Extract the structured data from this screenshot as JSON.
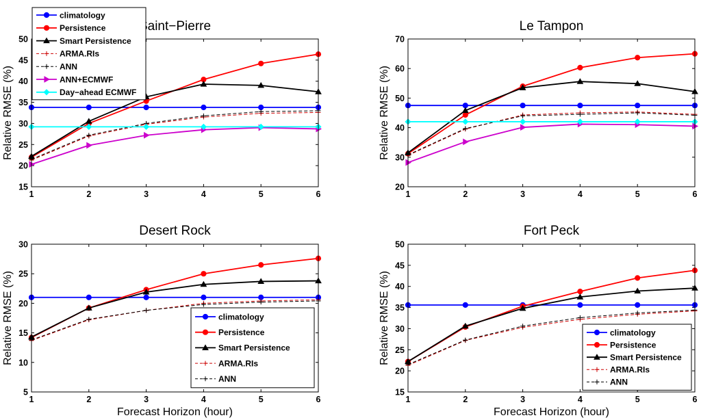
{
  "chart_data": [
    {
      "type": "line",
      "title": "Saint−Pierre",
      "ylabel": "Relative RMSE (%)",
      "xlabel": "",
      "x": [
        1,
        2,
        3,
        4,
        5,
        6
      ],
      "xlim": [
        1,
        6
      ],
      "ylim": [
        15,
        50
      ],
      "yticks": [
        15,
        20,
        25,
        30,
        35,
        40,
        45,
        50
      ],
      "grid": false,
      "legend": {
        "placement": "top-left",
        "entries": [
          "climatology",
          "Persistence",
          "Smart Persistence",
          "ARMA.RIs",
          "ANN",
          "ANN+ECMWF",
          "Day−ahead ECMWF"
        ]
      },
      "series": [
        {
          "name": "climatology",
          "color": "#0000ff",
          "style": "solid",
          "marker": "circle",
          "values": [
            33.8,
            33.8,
            33.8,
            33.8,
            33.8,
            33.8
          ]
        },
        {
          "name": "Persistence",
          "color": "#ff0000",
          "style": "solid",
          "marker": "circle",
          "values": [
            22.0,
            30.0,
            35.3,
            40.4,
            44.2,
            46.4
          ]
        },
        {
          "name": "Smart Persistence",
          "color": "#000000",
          "style": "solid",
          "marker": "triangle",
          "values": [
            22.2,
            30.5,
            36.3,
            39.3,
            39.0,
            37.5
          ]
        },
        {
          "name": "ARMA.RIs",
          "color": "#cc0000",
          "style": "dashed",
          "marker": "plus",
          "values": [
            21.3,
            27.0,
            29.8,
            31.5,
            32.4,
            32.6
          ]
        },
        {
          "name": "ANN",
          "color": "#000000",
          "style": "dashed",
          "marker": "plus",
          "values": [
            21.5,
            27.2,
            30.0,
            31.8,
            32.8,
            33.0
          ]
        },
        {
          "name": "ANN+ECMWF",
          "color": "#cc00cc",
          "style": "solid",
          "marker": "triangle-right",
          "values": [
            20.3,
            24.8,
            27.2,
            28.5,
            29.0,
            28.7
          ]
        },
        {
          "name": "Day−ahead ECMWF",
          "color": "#00ffff",
          "style": "solid",
          "marker": "diamond",
          "values": [
            29.2,
            29.2,
            29.2,
            29.2,
            29.2,
            29.2
          ]
        }
      ]
    },
    {
      "type": "line",
      "title": "Le Tampon",
      "ylabel": "Relative RMSE (%)",
      "xlabel": "",
      "x": [
        1,
        2,
        3,
        4,
        5,
        6
      ],
      "xlim": [
        1,
        6
      ],
      "ylim": [
        20,
        70
      ],
      "yticks": [
        20,
        30,
        40,
        50,
        60,
        70
      ],
      "grid": false,
      "series": [
        {
          "name": "climatology",
          "color": "#0000ff",
          "style": "solid",
          "marker": "circle",
          "values": [
            47.5,
            47.5,
            47.5,
            47.5,
            47.5,
            47.5
          ]
        },
        {
          "name": "Persistence",
          "color": "#ff0000",
          "style": "solid",
          "marker": "circle",
          "values": [
            31.2,
            44.3,
            54.0,
            60.3,
            63.7,
            65.0
          ]
        },
        {
          "name": "Smart Persistence",
          "color": "#000000",
          "style": "solid",
          "marker": "triangle",
          "values": [
            31.5,
            45.8,
            53.5,
            55.6,
            54.9,
            52.2
          ]
        },
        {
          "name": "ARMA.RIs",
          "color": "#cc0000",
          "style": "dashed",
          "marker": "plus",
          "values": [
            30.6,
            39.5,
            44.3,
            45.0,
            45.3,
            44.5
          ]
        },
        {
          "name": "ANN",
          "color": "#000000",
          "style": "dashed",
          "marker": "plus",
          "values": [
            30.8,
            39.7,
            44.0,
            44.5,
            45.0,
            44.2
          ]
        },
        {
          "name": "ANN+ECMWF",
          "color": "#cc00cc",
          "style": "solid",
          "marker": "triangle-right",
          "values": [
            28.2,
            35.2,
            40.1,
            41.2,
            41.0,
            40.5
          ]
        },
        {
          "name": "Day−ahead ECMWF",
          "color": "#00ffff",
          "style": "solid",
          "marker": "diamond",
          "values": [
            42.0,
            42.0,
            42.0,
            42.0,
            42.0,
            42.0
          ]
        }
      ]
    },
    {
      "type": "line",
      "title": "Desert Rock",
      "ylabel": "Relative RMSE (%)",
      "xlabel": "Forecast Horizon (hour)",
      "x": [
        1,
        2,
        3,
        4,
        5,
        6
      ],
      "xlim": [
        1,
        6
      ],
      "ylim": [
        5,
        30
      ],
      "yticks": [
        5,
        10,
        15,
        20,
        25,
        30
      ],
      "grid": false,
      "legend": {
        "placement": "bottom-right",
        "entries": [
          "climatology",
          "Persistence",
          "Smart Persistence",
          "ARMA.RIs",
          "ANN"
        ]
      },
      "series": [
        {
          "name": "climatology",
          "color": "#0000ff",
          "style": "solid",
          "marker": "circle",
          "values": [
            21.0,
            21.0,
            21.0,
            21.0,
            21.0,
            21.0
          ]
        },
        {
          "name": "Persistence",
          "color": "#ff0000",
          "style": "solid",
          "marker": "circle",
          "values": [
            14.2,
            19.2,
            22.3,
            25.0,
            26.5,
            27.6
          ]
        },
        {
          "name": "Smart Persistence",
          "color": "#000000",
          "style": "solid",
          "marker": "triangle",
          "values": [
            14.3,
            19.2,
            21.9,
            23.2,
            23.7,
            23.8
          ]
        },
        {
          "name": "ARMA.RIs",
          "color": "#cc0000",
          "style": "dashed",
          "marker": "plus",
          "values": [
            13.7,
            17.2,
            18.8,
            20.0,
            20.4,
            20.6
          ]
        },
        {
          "name": "ANN",
          "color": "#000000",
          "style": "dashed",
          "marker": "plus",
          "values": [
            13.8,
            17.3,
            18.8,
            19.8,
            20.2,
            20.4
          ]
        }
      ]
    },
    {
      "type": "line",
      "title": "Fort Peck",
      "ylabel": "Relative RMSE (%)",
      "xlabel": "Forecast Horizon (hour)",
      "x": [
        1,
        2,
        3,
        4,
        5,
        6
      ],
      "xlim": [
        1,
        6
      ],
      "ylim": [
        15,
        50
      ],
      "yticks": [
        15,
        20,
        25,
        30,
        35,
        40,
        45,
        50
      ],
      "grid": false,
      "legend": {
        "placement": "bottom-right",
        "entries": [
          "climatology",
          "Persistence",
          "Smart Persistence",
          "ARMA.RIs",
          "ANN"
        ]
      },
      "series": [
        {
          "name": "climatology",
          "color": "#0000ff",
          "style": "solid",
          "marker": "circle",
          "values": [
            35.6,
            35.6,
            35.6,
            35.6,
            35.6,
            35.6
          ]
        },
        {
          "name": "Persistence",
          "color": "#ff0000",
          "style": "solid",
          "marker": "circle",
          "values": [
            22.2,
            30.4,
            35.3,
            38.8,
            42.0,
            43.8
          ]
        },
        {
          "name": "Smart Persistence",
          "color": "#000000",
          "style": "solid",
          "marker": "triangle",
          "values": [
            22.2,
            30.6,
            34.8,
            37.5,
            38.9,
            39.6
          ]
        },
        {
          "name": "ARMA.RIs",
          "color": "#cc0000",
          "style": "dashed",
          "marker": "plus",
          "values": [
            21.3,
            27.2,
            30.3,
            32.2,
            33.4,
            34.2
          ]
        },
        {
          "name": "ANN",
          "color": "#000000",
          "style": "dashed",
          "marker": "plus",
          "values": [
            21.5,
            27.3,
            30.6,
            32.6,
            33.7,
            34.4
          ]
        }
      ]
    }
  ]
}
